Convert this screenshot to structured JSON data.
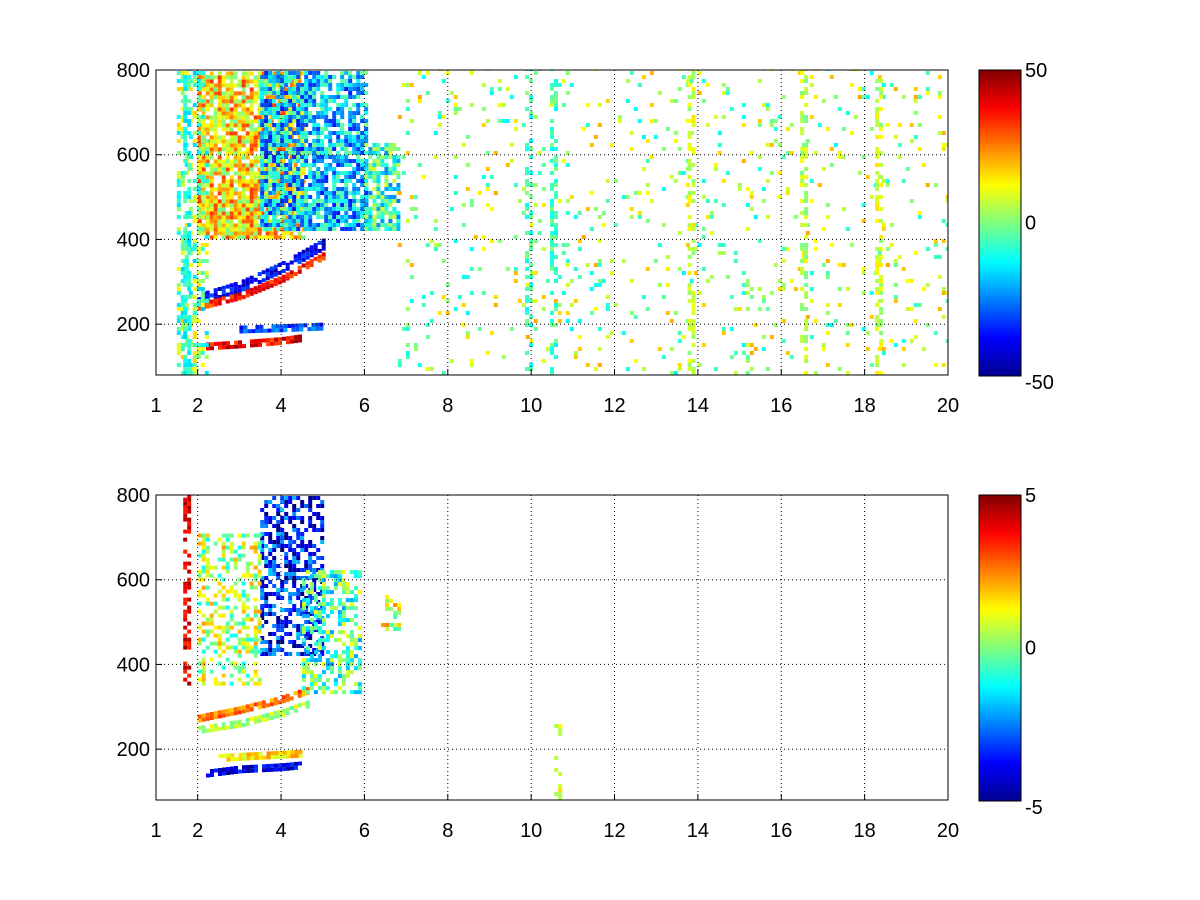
{
  "chart_data": [
    {
      "type": "heatmap",
      "title": "",
      "xlabel": "",
      "ylabel": "",
      "xlim": [
        1,
        20
      ],
      "ylim": [
        80,
        800
      ],
      "x_ticks": [
        "1",
        "2",
        "4",
        "6",
        "8",
        "10",
        "12",
        "14",
        "16",
        "18",
        "20"
      ],
      "y_ticks": [
        "200",
        "400",
        "600",
        "800"
      ],
      "grid": true,
      "colormap": "jet",
      "colorbar": {
        "min": -50,
        "max": 50,
        "ticks": [
          "50",
          "0",
          "-50"
        ]
      },
      "features": [
        {
          "kind": "band",
          "x": [
            2,
            3,
            4,
            5
          ],
          "y": [
            255,
            285,
            330,
            385
          ],
          "value": -38,
          "width": 20
        },
        {
          "kind": "band",
          "x": [
            2,
            3,
            4,
            5
          ],
          "y": [
            240,
            265,
            305,
            360
          ],
          "value": 35,
          "width": 16
        },
        {
          "kind": "band",
          "x": [
            2.2,
            3,
            4,
            4.5
          ],
          "y": [
            145,
            150,
            158,
            165
          ],
          "value": 38,
          "width": 14
        },
        {
          "kind": "band",
          "x": [
            3,
            4,
            5
          ],
          "y": [
            185,
            188,
            192
          ],
          "value": -30,
          "width": 14
        },
        {
          "kind": "region",
          "x": [
            2,
            4.5
          ],
          "y": [
            400,
            790
          ],
          "value": 15,
          "fill": 0.85
        },
        {
          "kind": "region",
          "x": [
            3.5,
            6
          ],
          "y": [
            420,
            790
          ],
          "value": -18,
          "fill": 0.75
        },
        {
          "kind": "region",
          "x": [
            6,
            6.8
          ],
          "y": [
            420,
            620
          ],
          "value": -8,
          "fill": 0.7
        },
        {
          "kind": "region",
          "x": [
            1.5,
            2.2
          ],
          "y": [
            80,
            790
          ],
          "value": 0,
          "fill": 0.45
        },
        {
          "kind": "region",
          "x": [
            6.8,
            20
          ],
          "y": [
            80,
            800
          ],
          "value": 4,
          "fill": 0.07
        },
        {
          "kind": "column",
          "x": 10.5,
          "y": [
            80,
            800
          ],
          "value": -6,
          "fill": 0.55
        },
        {
          "kind": "column",
          "x": 13.8,
          "y": [
            80,
            800
          ],
          "value": 8,
          "fill": 0.5
        },
        {
          "kind": "column",
          "x": 16.5,
          "y": [
            80,
            800
          ],
          "value": 6,
          "fill": 0.45
        },
        {
          "kind": "column",
          "x": 18.3,
          "y": [
            80,
            800
          ],
          "value": 8,
          "fill": 0.45
        },
        {
          "kind": "column",
          "x": 9.9,
          "y": [
            80,
            800
          ],
          "value": -6,
          "fill": 0.4
        },
        {
          "kind": "column",
          "x": 1.7,
          "y": [
            80,
            800
          ],
          "value": -10,
          "fill": 0.6
        }
      ]
    },
    {
      "type": "heatmap",
      "title": "",
      "xlabel": "",
      "ylabel": "",
      "xlim": [
        1,
        20
      ],
      "ylim": [
        80,
        800
      ],
      "x_ticks": [
        "1",
        "2",
        "4",
        "6",
        "8",
        "10",
        "12",
        "14",
        "16",
        "18",
        "20"
      ],
      "y_ticks": [
        "200",
        "400",
        "600",
        "800"
      ],
      "grid": true,
      "colormap": "jet",
      "colorbar": {
        "min": -5,
        "max": 5,
        "ticks": [
          "5",
          "0",
          "-5"
        ]
      },
      "features": [
        {
          "kind": "band",
          "x": [
            2,
            3,
            4,
            4.6
          ],
          "y": [
            270,
            290,
            315,
            335
          ],
          "value": 2.5,
          "width": 14
        },
        {
          "kind": "band",
          "x": [
            2,
            3,
            4,
            4.6
          ],
          "y": [
            245,
            260,
            285,
            305
          ],
          "value": 0.5,
          "width": 18
        },
        {
          "kind": "band",
          "x": [
            2.2,
            3,
            4,
            4.5
          ],
          "y": [
            140,
            150,
            155,
            160
          ],
          "value": -4,
          "width": 14
        },
        {
          "kind": "band",
          "x": [
            2.5,
            3.5,
            4.5
          ],
          "y": [
            175,
            180,
            185
          ],
          "value": 1.5,
          "width": 10
        },
        {
          "kind": "region",
          "x": [
            3.5,
            5
          ],
          "y": [
            420,
            790
          ],
          "value": -3.5,
          "fill": 0.55
        },
        {
          "kind": "region",
          "x": [
            2,
            3.5
          ],
          "y": [
            350,
            700
          ],
          "value": 0.5,
          "fill": 0.45
        },
        {
          "kind": "region",
          "x": [
            4.5,
            5.9
          ],
          "y": [
            330,
            620
          ],
          "value": -0.5,
          "fill": 0.55
        },
        {
          "kind": "region",
          "x": [
            6.4,
            6.8
          ],
          "y": [
            460,
            560
          ],
          "value": 1,
          "fill": 0.5
        },
        {
          "kind": "column",
          "x": 1.7,
          "y": [
            350,
            800
          ],
          "value": 4,
          "fill": 0.5
        },
        {
          "kind": "column",
          "x": 10.6,
          "y": [
            80,
            250
          ],
          "value": 1,
          "fill": 0.2
        }
      ]
    }
  ]
}
